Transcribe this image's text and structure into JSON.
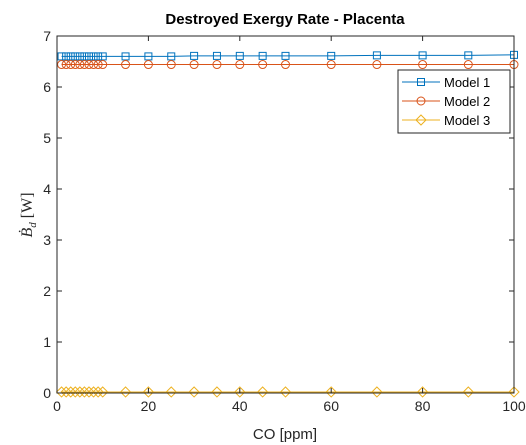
{
  "chart_data": {
    "type": "line",
    "title": "Destroyed Exergy Rate - Placenta",
    "xlabel": "CO [ppm]",
    "ylabel_main": "Ḃ",
    "ylabel_sub": "d",
    "ylabel_unit": "[W]",
    "xlim": [
      0,
      100
    ],
    "ylim": [
      0,
      7
    ],
    "xticks": [
      0,
      20,
      40,
      60,
      80,
      100
    ],
    "yticks": [
      0,
      1,
      2,
      3,
      4,
      5,
      6,
      7
    ],
    "grid": false,
    "legend_position": "top-right",
    "x": [
      1,
      2,
      3,
      4,
      5,
      6,
      7,
      8,
      9,
      10,
      15,
      20,
      25,
      30,
      35,
      40,
      45,
      50,
      60,
      70,
      80,
      90,
      100
    ],
    "series": [
      {
        "name": "Model 1",
        "color": "#0072BD",
        "marker": "square",
        "values": [
          6.6,
          6.6,
          6.6,
          6.6,
          6.6,
          6.6,
          6.6,
          6.6,
          6.6,
          6.6,
          6.6,
          6.6,
          6.6,
          6.61,
          6.61,
          6.61,
          6.61,
          6.61,
          6.61,
          6.62,
          6.62,
          6.62,
          6.63
        ]
      },
      {
        "name": "Model 2",
        "color": "#D95319",
        "marker": "circle",
        "values": [
          6.44,
          6.44,
          6.44,
          6.44,
          6.44,
          6.44,
          6.44,
          6.44,
          6.44,
          6.44,
          6.44,
          6.44,
          6.44,
          6.44,
          6.44,
          6.44,
          6.44,
          6.44,
          6.44,
          6.44,
          6.44,
          6.44,
          6.44
        ]
      },
      {
        "name": "Model 3",
        "color": "#EDB120",
        "marker": "diamond",
        "values": [
          0.02,
          0.02,
          0.02,
          0.02,
          0.02,
          0.02,
          0.02,
          0.02,
          0.02,
          0.02,
          0.02,
          0.02,
          0.02,
          0.02,
          0.02,
          0.02,
          0.02,
          0.02,
          0.02,
          0.02,
          0.02,
          0.02,
          0.02
        ]
      }
    ]
  }
}
